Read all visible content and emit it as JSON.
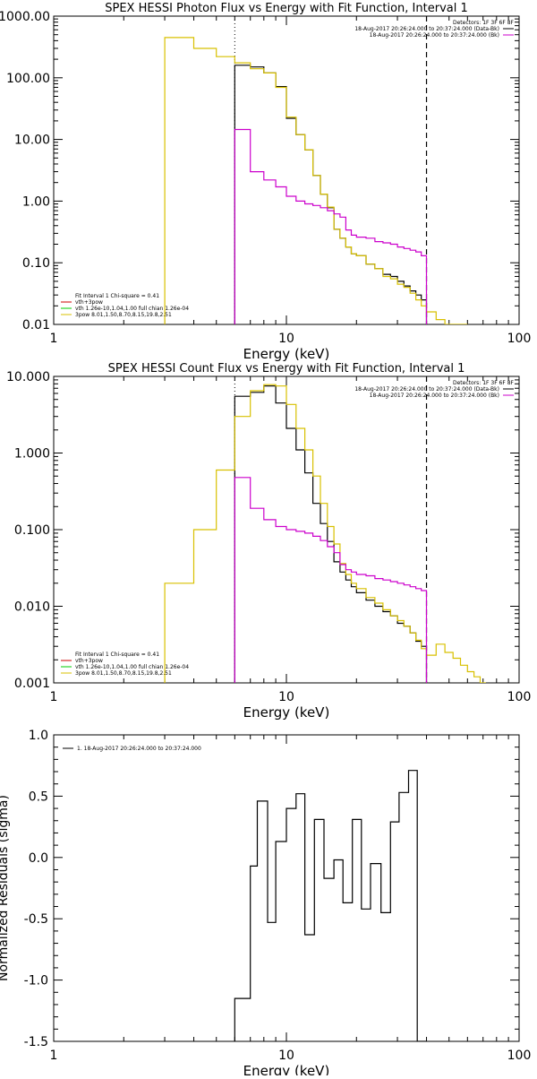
{
  "colors": {
    "background": "#ffffff",
    "axes": "#000000",
    "data_total": "#000000",
    "vth_plus_3pow": "#cc0000",
    "vth": "#00cc00",
    "3pow": "#d8c000",
    "bk": "#cc00cc"
  },
  "chart_data": [
    {
      "type": "line",
      "title": "SPEX HESSI Photon Flux vs Energy with Fit Function, Interval 1",
      "xlabel": "Energy (keV)",
      "ylabel": "",
      "xscale": "log",
      "yscale": "log",
      "xlim": [
        1,
        100
      ],
      "ylim": [
        0.01,
        1000
      ],
      "xticks": [
        "1",
        "10",
        "100"
      ],
      "yticks": [
        "0.01",
        "0.10",
        "1.00",
        "10.00",
        "100.00",
        "1000.00"
      ],
      "legend_top_right": [
        "Detectors: 1F 3F 6F 8F",
        "18-Aug-2017 20:26:24.000 to 20:37:24.000 (Data-Bk)",
        "18-Aug-2017 20:26:24.000 to 20:37:24.000 (Bk)"
      ],
      "legend_bottom_left": [
        {
          "label": "Fit Interval 1    Chi-square = 0.41",
          "color": "none"
        },
        {
          "label": "vth+3pow",
          "color": "#cc0000"
        },
        {
          "label": "vth 1.26e-10,1.04,1.00  full chian 1.26e-04",
          "color": "#00cc00"
        },
        {
          "label": "3pow 8.01,1.50,8.70,8.15,19.8,2.51",
          "color": "#d8c000"
        }
      ],
      "markers": {
        "fit_range_low": 6,
        "fit_range_high": 40
      },
      "series": [
        {
          "id": "data_total",
          "edges": [
            6,
            7,
            8,
            9,
            10,
            11,
            12,
            13,
            14,
            15,
            16,
            17,
            18,
            19,
            20,
            22,
            24,
            26,
            28,
            30,
            32,
            34,
            36,
            38,
            40
          ],
          "values": [
            160,
            150,
            120,
            72,
            22,
            12,
            6.8,
            2.6,
            1.3,
            0.78,
            0.35,
            0.25,
            0.18,
            0.14,
            0.13,
            0.095,
            0.08,
            0.065,
            0.06,
            0.05,
            0.042,
            0.035,
            0.03,
            0.025
          ]
        },
        {
          "id": "3pow",
          "edges": [
            3,
            4,
            5,
            6,
            7,
            8,
            9,
            10,
            11,
            12,
            13,
            14,
            15,
            16,
            17,
            18,
            19,
            20,
            22,
            24,
            26,
            28,
            30,
            32,
            34,
            36,
            38,
            40,
            44,
            48,
            52,
            56,
            60
          ],
          "values": [
            450,
            300,
            220,
            175,
            140,
            120,
            70,
            23,
            12,
            6.8,
            2.6,
            1.3,
            0.8,
            0.35,
            0.25,
            0.18,
            0.14,
            0.13,
            0.095,
            0.08,
            0.06,
            0.055,
            0.045,
            0.04,
            0.032,
            0.025,
            0.02,
            0.016,
            0.012,
            0.01,
            0.008,
            0.007
          ]
        },
        {
          "id": "bk",
          "edges": [
            6,
            7,
            8,
            9,
            10,
            11,
            12,
            13,
            14,
            15,
            16,
            17,
            18,
            19,
            20,
            22,
            24,
            26,
            28,
            30,
            32,
            34,
            36,
            38,
            40
          ],
          "values": [
            14.5,
            3.0,
            2.2,
            1.7,
            1.2,
            1.0,
            0.9,
            0.85,
            0.78,
            0.7,
            0.62,
            0.55,
            0.34,
            0.28,
            0.26,
            0.25,
            0.22,
            0.21,
            0.2,
            0.18,
            0.17,
            0.16,
            0.15,
            0.13
          ]
        }
      ]
    },
    {
      "type": "line",
      "title": "SPEX HESSI Count Flux vs Energy with Fit Function, Interval 1",
      "xlabel": "Energy (keV)",
      "ylabel": "",
      "xscale": "log",
      "yscale": "log",
      "xlim": [
        1,
        100
      ],
      "ylim": [
        0.001,
        10
      ],
      "xticks": [
        "1",
        "10",
        "100"
      ],
      "yticks": [
        "0.001",
        "0.010",
        "0.100",
        "1.000",
        "10.000"
      ],
      "legend_top_right": [
        "Detectors: 1F 3F 6F 8F",
        "18-Aug-2017 20:26:24.000 to 20:37:24.000 (Data-Bk)",
        "18-Aug-2017 20:26:24.000 to 20:37:24.000 (Bk)"
      ],
      "legend_bottom_left": [
        {
          "label": "Fit Interval 1    Chi-square = 0.41",
          "color": "none"
        },
        {
          "label": "vth+3pow",
          "color": "#cc0000"
        },
        {
          "label": "vth 1.26e-10,1.04,1.00  full chian 1.26e-04",
          "color": "#00cc00"
        },
        {
          "label": "3pow 8.01,1.50,8.70,8.15,19.8,2.51",
          "color": "#d8c000"
        }
      ],
      "markers": {
        "fit_range_low": 6,
        "fit_range_high": 40
      },
      "series": [
        {
          "id": "data_total",
          "edges": [
            6,
            7,
            8,
            9,
            10,
            11,
            12,
            13,
            14,
            15,
            16,
            17,
            18,
            19,
            20,
            22,
            24,
            26,
            28,
            30,
            32,
            34,
            36,
            38,
            40
          ],
          "values": [
            5.5,
            6.2,
            7.5,
            4.5,
            2.1,
            1.1,
            0.55,
            0.22,
            0.12,
            0.07,
            0.038,
            0.028,
            0.022,
            0.018,
            0.015,
            0.012,
            0.01,
            0.0085,
            0.0075,
            0.006,
            0.0055,
            0.0045,
            0.0035,
            0.003
          ]
        },
        {
          "id": "3pow",
          "edges": [
            3,
            4,
            5,
            6,
            7,
            8,
            9,
            10,
            11,
            12,
            13,
            14,
            15,
            16,
            17,
            18,
            19,
            20,
            22,
            24,
            26,
            28,
            30,
            32,
            34,
            36,
            38,
            40,
            44,
            48,
            52,
            56,
            60,
            64,
            68,
            72
          ],
          "values": [
            0.02,
            0.1,
            0.6,
            3.0,
            6.5,
            7.8,
            7.5,
            4.3,
            2.1,
            1.1,
            0.5,
            0.22,
            0.11,
            0.065,
            0.036,
            0.026,
            0.02,
            0.017,
            0.013,
            0.011,
            0.009,
            0.0075,
            0.0065,
            0.0055,
            0.0045,
            0.0036,
            0.0028,
            0.0023,
            0.0032,
            0.0025,
            0.0021,
            0.0017,
            0.0014,
            0.0012,
            0.001
          ]
        },
        {
          "id": "bk",
          "edges": [
            6,
            7,
            8,
            9,
            10,
            11,
            12,
            13,
            14,
            15,
            16,
            17,
            18,
            19,
            20,
            22,
            24,
            26,
            28,
            30,
            32,
            34,
            36,
            38,
            40
          ],
          "values": [
            0.48,
            0.19,
            0.135,
            0.11,
            0.1,
            0.095,
            0.09,
            0.082,
            0.072,
            0.06,
            0.05,
            0.035,
            0.03,
            0.028,
            0.026,
            0.025,
            0.023,
            0.022,
            0.021,
            0.02,
            0.019,
            0.018,
            0.017,
            0.016
          ]
        }
      ]
    },
    {
      "type": "line",
      "title": "",
      "xlabel": "Energy (keV)",
      "ylabel": "Normalized Residuals (sigma)",
      "xscale": "log",
      "yscale": "linear",
      "xlim": [
        1,
        100
      ],
      "ylim": [
        -1.5,
        1.0
      ],
      "xticks": [
        "1",
        "10",
        "100"
      ],
      "yticks": [
        "-1.5",
        "-1.0",
        "-0.5",
        "0.0",
        "0.5",
        "1.0"
      ],
      "legend_top_left": [
        {
          "label": "1. 18-Aug-2017 20:26:24.000 to 20:37:24.000",
          "color": "#000000"
        }
      ],
      "series": [
        {
          "id": "residuals",
          "edges": [
            6,
            7,
            7.5,
            8.3,
            9,
            10,
            11,
            12,
            13.2,
            14.5,
            16,
            17.5,
            19.2,
            21,
            23,
            25.5,
            28,
            30.5,
            33.5,
            36.5,
            40
          ],
          "values": [
            -1.15,
            -0.07,
            0.46,
            -0.53,
            0.13,
            0.4,
            0.52,
            -0.63,
            0.31,
            -0.17,
            -0.02,
            -0.37,
            0.31,
            -0.42,
            -0.05,
            -0.45,
            0.29,
            0.53,
            0.71,
            -1.55
          ]
        }
      ]
    }
  ]
}
